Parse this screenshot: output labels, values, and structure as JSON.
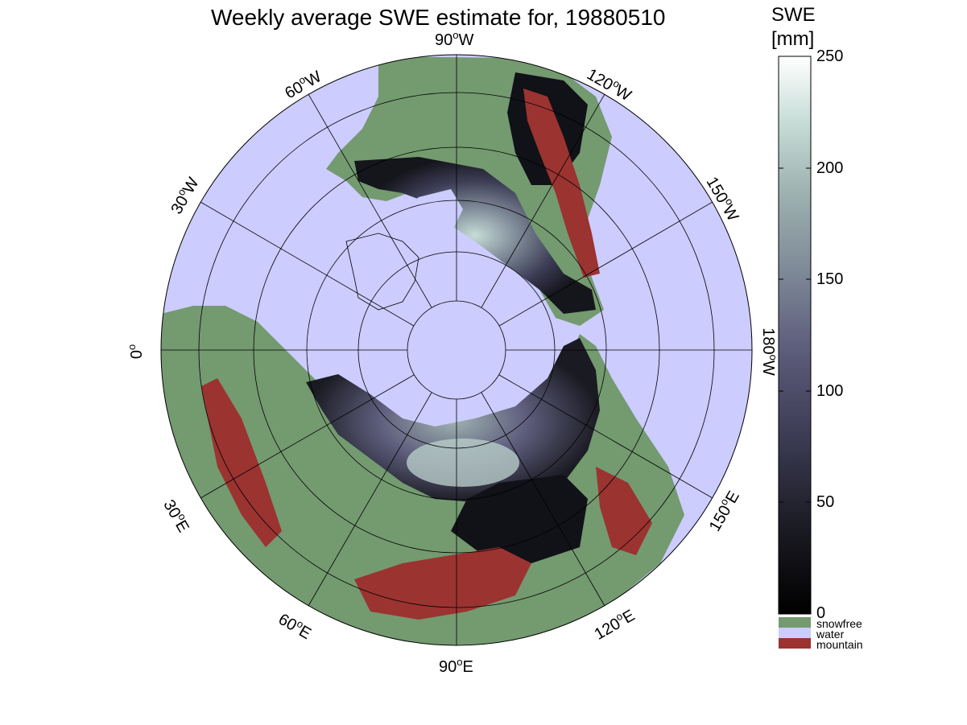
{
  "title": "Weekly average SWE estimate for, 19880510",
  "colorbar": {
    "title_line1": "SWE",
    "title_line2": "[mm]",
    "ticks": [
      "250",
      "200",
      "150",
      "100",
      "50",
      "0"
    ],
    "tick_values": [
      250,
      200,
      150,
      100,
      50,
      0
    ],
    "range": [
      0,
      250
    ],
    "gradient_colors": [
      "#000000",
      "#1a1a22",
      "#3c3c55",
      "#5e5e7d",
      "#7f8b98",
      "#9fb3b1",
      "#c6dcd6",
      "#ffffff"
    ],
    "categories": [
      {
        "label": "snowfree",
        "color": "#749a70"
      },
      {
        "label": "water",
        "color": "#ccccff"
      },
      {
        "label": "mountain",
        "color": "#9b3331"
      }
    ]
  },
  "map": {
    "projection": "north polar stereographic",
    "ocean_color": "#ccccff",
    "land_color": "#749a70",
    "mountain_color": "#9b3331",
    "longitude_labels": [
      {
        "deg": "90",
        "dir": "W"
      },
      {
        "deg": "120",
        "dir": "W"
      },
      {
        "deg": "150",
        "dir": "W"
      },
      {
        "deg": "180",
        "dir": "W"
      },
      {
        "deg": "150",
        "dir": "E"
      },
      {
        "deg": "120",
        "dir": "E"
      },
      {
        "deg": "90",
        "dir": "E"
      },
      {
        "deg": "60",
        "dir": "E"
      },
      {
        "deg": "30",
        "dir": "E"
      },
      {
        "deg": "0",
        "dir": ""
      },
      {
        "deg": "30",
        "dir": "W"
      },
      {
        "deg": "60",
        "dir": "W"
      }
    ]
  }
}
